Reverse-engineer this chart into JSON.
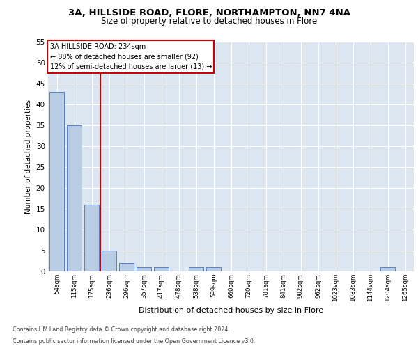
{
  "title1": "3A, HILLSIDE ROAD, FLORE, NORTHAMPTON, NN7 4NA",
  "title2": "Size of property relative to detached houses in Flore",
  "xlabel": "Distribution of detached houses by size in Flore",
  "ylabel": "Number of detached properties",
  "categories": [
    "54sqm",
    "115sqm",
    "175sqm",
    "236sqm",
    "296sqm",
    "357sqm",
    "417sqm",
    "478sqm",
    "538sqm",
    "599sqm",
    "660sqm",
    "720sqm",
    "781sqm",
    "841sqm",
    "902sqm",
    "962sqm",
    "1023sqm",
    "1083sqm",
    "1144sqm",
    "1204sqm",
    "1265sqm"
  ],
  "values": [
    43,
    35,
    16,
    5,
    2,
    1,
    1,
    0,
    1,
    1,
    0,
    0,
    0,
    0,
    0,
    0,
    0,
    0,
    0,
    1,
    0
  ],
  "bar_color": "#b8cce4",
  "bar_edge_color": "#4472c4",
  "annotation_text": "3A HILLSIDE ROAD: 234sqm\n← 88% of detached houses are smaller (92)\n12% of semi-detached houses are larger (13) →",
  "annotation_box_color": "#ffffff",
  "annotation_box_edge_color": "#cc0000",
  "vline_color": "#cc0000",
  "ylim": [
    0,
    55
  ],
  "yticks": [
    0,
    5,
    10,
    15,
    20,
    25,
    30,
    35,
    40,
    45,
    50,
    55
  ],
  "footer_line1": "Contains HM Land Registry data © Crown copyright and database right 2024.",
  "footer_line2": "Contains public sector information licensed under the Open Government Licence v3.0.",
  "plot_bg_color": "#dce6f1",
  "fig_bg_color": "#ffffff",
  "grid_color": "#ffffff"
}
